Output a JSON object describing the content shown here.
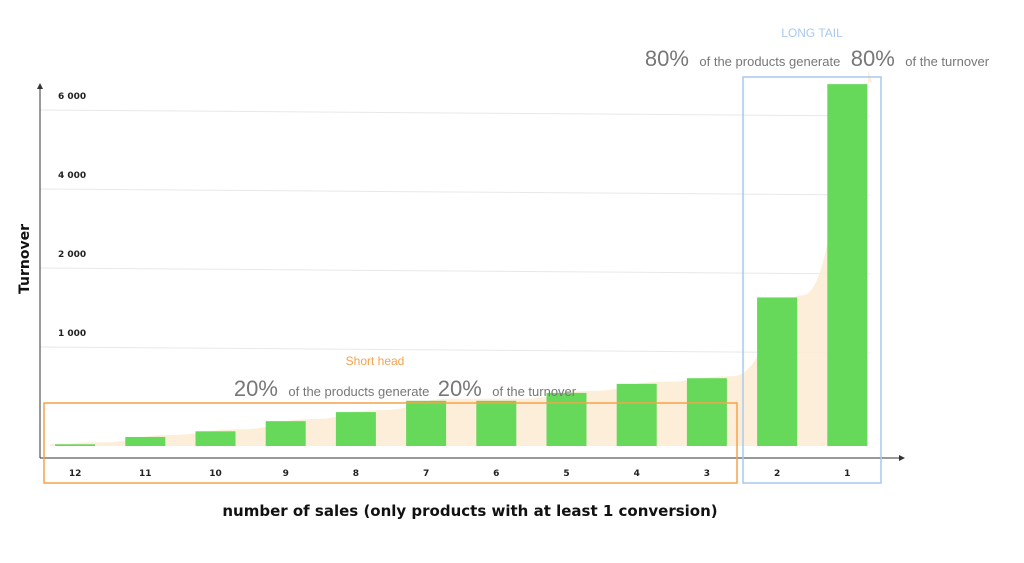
{
  "chart_data": {
    "type": "bar",
    "categories": [
      "12",
      "11",
      "10",
      "9",
      "8",
      "7",
      "6",
      "5",
      "4",
      "3",
      "2",
      "1"
    ],
    "values": [
      15,
      80,
      130,
      220,
      300,
      400,
      400,
      470,
      550,
      600,
      1450,
      6300
    ],
    "ylabel": "Turnover",
    "xlabel": "number of sales (only products with at least 1 conversion)",
    "y_ticks": [
      1000,
      2000,
      4000,
      6000
    ],
    "y_tick_labels": [
      "1 000",
      "2 000",
      "4 000",
      "6 000"
    ],
    "bar_color": "#66d85a",
    "curve_color": "#fdebd2",
    "grid": true
  },
  "annotations": {
    "short_head": {
      "label": "Short head",
      "pct1": "20%",
      "text1": "of the products generate",
      "pct2": "20%",
      "text2": "of the turnover",
      "color": "#f5a24b"
    },
    "long_tail": {
      "label": "LONG TAIL",
      "pct1": "80%",
      "text1": "of the products generate",
      "pct2": "80%",
      "text2": "of the turnover",
      "color": "#a9c8ee"
    }
  }
}
